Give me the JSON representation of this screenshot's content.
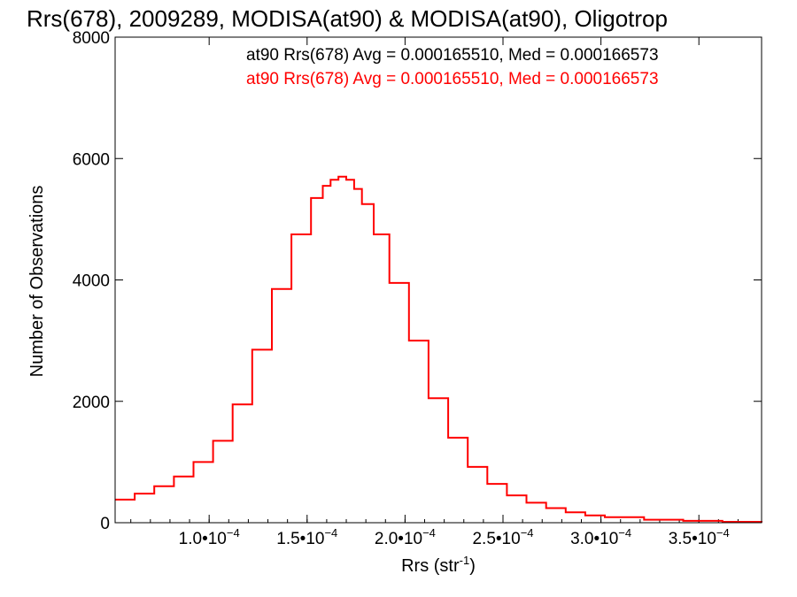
{
  "chart_data": {
    "type": "histogram",
    "title": "Rrs(678), 2009289, MODISA(at90) & MODISA(at90), Oligotrop",
    "xlabel": "Rrs (str",
    "xlabel_sup": "-1",
    "xlabel_close": ")",
    "ylabel": "Number of Observations",
    "xlim": [
      5.2e-05,
      0.000382
    ],
    "ylim": [
      0,
      8000
    ],
    "y_ticks": [
      0,
      2000,
      4000,
      6000,
      8000
    ],
    "x_ticks": [
      {
        "value": 0.0001,
        "mantissa": "1.0•10",
        "exp": "−4"
      },
      {
        "value": 0.00015,
        "mantissa": "1.5•10",
        "exp": "−4"
      },
      {
        "value": 0.0002,
        "mantissa": "2.0•10",
        "exp": "−4"
      },
      {
        "value": 0.00025,
        "mantissa": "2.5•10",
        "exp": "−4"
      },
      {
        "value": 0.0003,
        "mantissa": "3.0•10",
        "exp": "−4"
      },
      {
        "value": 0.00035,
        "mantissa": "3.5•10",
        "exp": "−4"
      }
    ],
    "annotations": [
      {
        "text": "at90 Rrs(678) Avg = 0.000165510, Med = 0.000166573",
        "color": "#000000"
      },
      {
        "text": "at90 Rrs(678) Avg = 0.000165510, Med = 0.000166573",
        "color": "#ff0000"
      }
    ],
    "series": [
      {
        "color": "#ff0000",
        "step": true,
        "x": [
          5.2e-05,
          6.2e-05,
          7.2e-05,
          8.2e-05,
          9.2e-05,
          0.000102,
          0.000112,
          0.000122,
          0.000132,
          0.000142,
          0.000152,
          0.000158,
          0.000162,
          0.000166,
          0.00017,
          0.000174,
          0.000178,
          0.000184,
          0.000192,
          0.000202,
          0.000212,
          0.000222,
          0.000232,
          0.000242,
          0.000252,
          0.000262,
          0.000272,
          0.000282,
          0.000292,
          0.000302,
          0.000322,
          0.000342,
          0.000362,
          0.000382
        ],
        "y": [
          380,
          480,
          600,
          760,
          1000,
          1350,
          1950,
          2850,
          3850,
          4750,
          5350,
          5550,
          5650,
          5700,
          5650,
          5500,
          5250,
          4750,
          3950,
          3000,
          2050,
          1400,
          920,
          640,
          450,
          330,
          240,
          170,
          120,
          90,
          50,
          30,
          15,
          5
        ]
      }
    ],
    "grid": false
  }
}
